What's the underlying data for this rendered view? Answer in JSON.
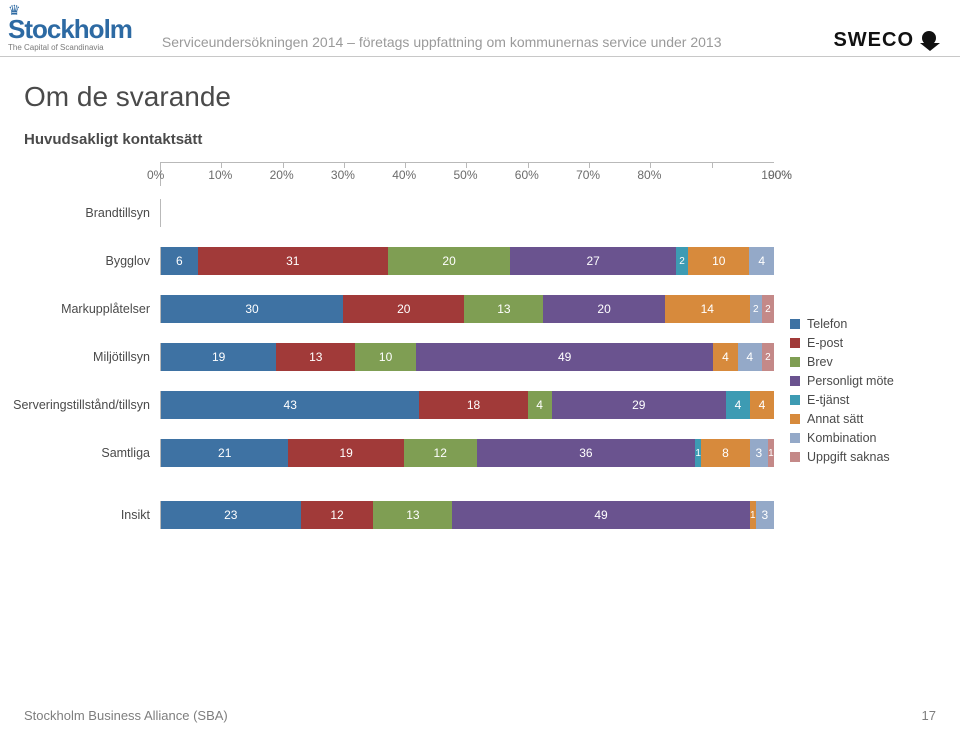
{
  "header": {
    "logo_left": "Stockholm",
    "logo_left_sub": "The Capital of Scandinavia",
    "text": "Serviceundersökningen 2014 – företags uppfattning om kommunernas service under 2013",
    "logo_right": "SWECO"
  },
  "title": "Om de svarande",
  "subtitle": "Huvudsakligt kontaktsätt",
  "chart": {
    "type": "stacked-bar-horizontal",
    "x_ticks": [
      "0%",
      "10%",
      "20%",
      "30%",
      "40%",
      "50%",
      "60%",
      "70%",
      "80%",
      "90%",
      "100%"
    ],
    "colors": {
      "Telefon": "#3e72a3",
      "E-post": "#a13a39",
      "Brev": "#7f9e53",
      "Personligt möte": "#6a538f",
      "E-tjänst": "#3d9bb3",
      "Annat sätt": "#d78a3c",
      "Kombination": "#94a9c8",
      "Uppgift saknas": "#c48988"
    },
    "series_order": [
      "Telefon",
      "E-post",
      "Brev",
      "Personligt möte",
      "E-tjänst",
      "Annat sätt",
      "Kombination",
      "Uppgift saknas"
    ],
    "rows": [
      {
        "label": "Brandtillsyn",
        "values": null
      },
      {
        "label": "Bygglov",
        "values": {
          "Telefon": 6,
          "E-post": 31,
          "Brev": 20,
          "Personligt möte": 27,
          "E-tjänst": 2,
          "Annat sätt": 10,
          "Kombination": 4,
          "Uppgift saknas": 0
        }
      },
      {
        "label": "Markupplåtelser",
        "values": {
          "Telefon": 30,
          "E-post": 20,
          "Brev": 13,
          "Personligt möte": 20,
          "E-tjänst": 0,
          "Annat sätt": 14,
          "Kombination": 2,
          "Uppgift saknas": 2
        }
      },
      {
        "label": "Miljötillsyn",
        "values": {
          "Telefon": 19,
          "E-post": 13,
          "Brev": 10,
          "Personligt möte": 49,
          "E-tjänst": 0,
          "Annat sätt": 4,
          "Kombination": 4,
          "Uppgift saknas": 2
        }
      },
      {
        "label": "Serveringstillstånd/tillsyn",
        "values": {
          "Telefon": 43,
          "E-post": 18,
          "Brev": 4,
          "Personligt möte": 29,
          "E-tjänst": 4,
          "Annat sätt": 4,
          "Kombination": 0,
          "Uppgift saknas": null
        }
      },
      {
        "label": "Samtliga",
        "values": {
          "Telefon": 21,
          "E-post": 19,
          "Brev": 12,
          "Personligt möte": 36,
          "E-tjänst": 1,
          "Annat sätt": 8,
          "Kombination": 3,
          "Uppgift saknas": 1
        }
      },
      {
        "label": "Insikt",
        "values": {
          "Telefon": 23,
          "E-post": 12,
          "Brev": 13,
          "Personligt möte": 49,
          "E-tjänst": null,
          "Annat sätt": 1,
          "Kombination": 3,
          "Uppgift saknas": null
        },
        "gap_before": true
      }
    ],
    "bar_label_color": "#ffffff",
    "axis_color": "#b9b9b9",
    "label_fontsize": 12.5
  },
  "legend": {
    "items": [
      "Telefon",
      "E-post",
      "Brev",
      "Personligt möte",
      "E-tjänst",
      "Annat sätt",
      "Kombination",
      "Uppgift saknas"
    ]
  },
  "footer": {
    "left": "Stockholm Business Alliance (SBA)",
    "pagenum": "17"
  }
}
